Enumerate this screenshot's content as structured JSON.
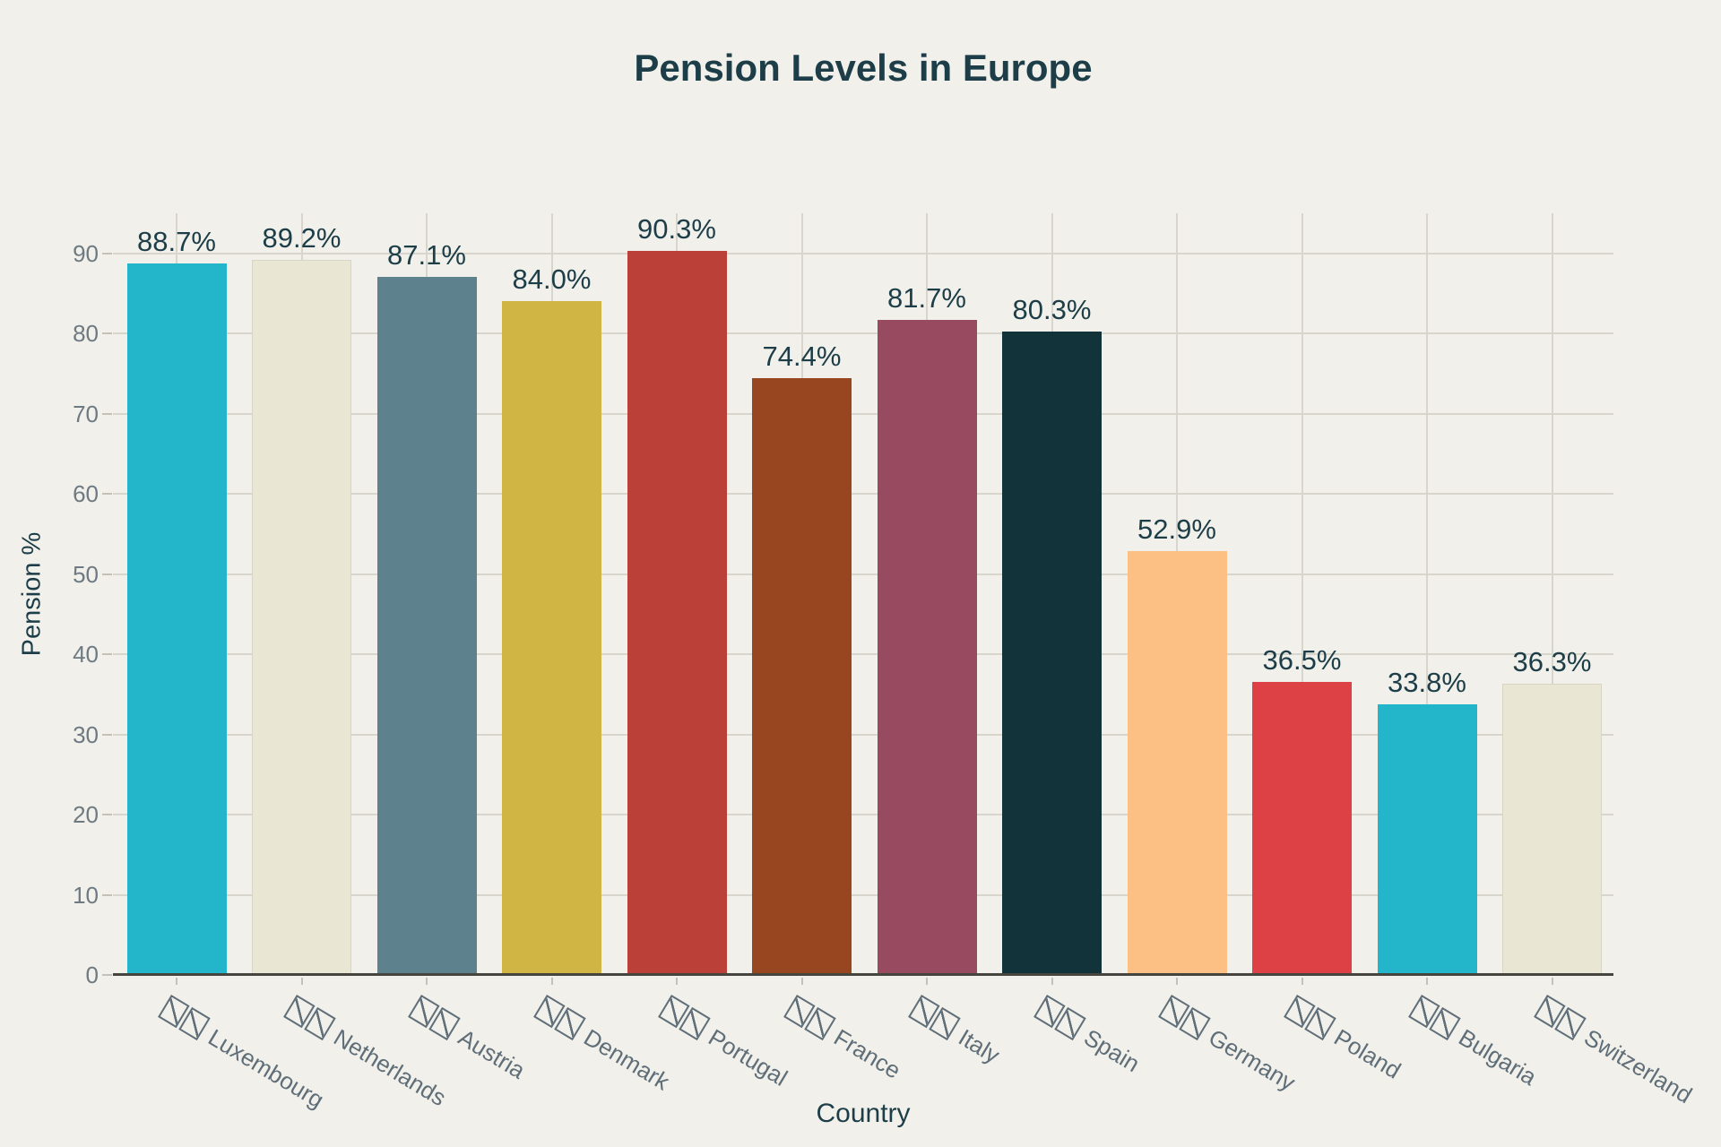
{
  "chart_data": {
    "type": "bar",
    "title": "Pension Levels in Europe",
    "xlabel": "Country",
    "ylabel": "Pension %",
    "ylim": [
      0,
      95
    ],
    "yticks": [
      0,
      10,
      20,
      30,
      40,
      50,
      60,
      70,
      80,
      90
    ],
    "grid": true,
    "legend": "none",
    "categories": [
      "Luxembourg",
      "Netherlands",
      "Austria",
      "Denmark",
      "Portugal",
      "France",
      "Italy",
      "Spain",
      "Germany",
      "Poland",
      "Bulgaria",
      "Switzerland"
    ],
    "values": [
      88.7,
      89.2,
      87.1,
      84.0,
      90.3,
      74.4,
      81.7,
      80.3,
      52.9,
      36.5,
      33.8,
      36.3
    ],
    "bar_labels": [
      "88.7%",
      "89.2%",
      "87.1%",
      "84.0%",
      "90.3%",
      "74.4%",
      "81.7%",
      "80.3%",
      "52.9%",
      "36.5%",
      "33.8%",
      "36.3%"
    ],
    "bar_colors": [
      "#23b5c9",
      "#e9e6d4",
      "#5d828e",
      "#d1b544",
      "#bb4138",
      "#98461f",
      "#984a60",
      "#13333b",
      "#fdc084",
      "#dd4045",
      "#23b5c9",
      "#e9e6d4"
    ],
    "category_flag_placeholder": "two missing-glyph boxes before each country name"
  },
  "colors": {
    "background": "#f1f0ea",
    "title_text": "#1d3e48",
    "axis_title_text": "#1d3e48",
    "bar_label_text": "#1d3e48",
    "ytick_text": "#6e7a82",
    "xtick_text": "#5f6e78",
    "gridline": "#d7d5cc",
    "axis_line": "#45453d",
    "tick_mark": "#c3c1b8",
    "cream_bar_border": "#d8d5c4"
  }
}
